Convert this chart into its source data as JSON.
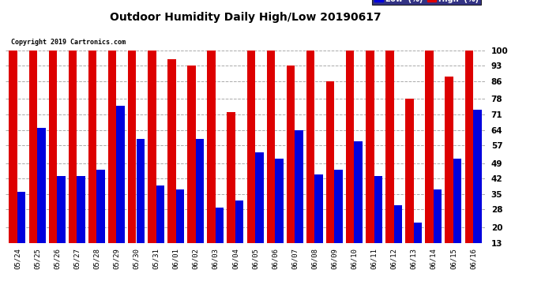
{
  "title": "Outdoor Humidity Daily High/Low 20190617",
  "copyright": "Copyright 2019 Cartronics.com",
  "legend_low": "Low  (%)",
  "legend_high": "High  (%)",
  "low_color": "#0000dd",
  "high_color": "#dd0000",
  "bg_color": "#ffffff",
  "ylim": [
    13,
    100
  ],
  "yticks": [
    13,
    20,
    28,
    35,
    42,
    49,
    57,
    64,
    71,
    78,
    86,
    93,
    100
  ],
  "dates": [
    "05/24",
    "05/25",
    "05/26",
    "05/27",
    "05/28",
    "05/29",
    "05/30",
    "05/31",
    "06/01",
    "06/02",
    "06/03",
    "06/04",
    "06/05",
    "06/06",
    "06/07",
    "06/08",
    "06/09",
    "06/10",
    "06/11",
    "06/12",
    "06/13",
    "06/14",
    "06/15",
    "06/16"
  ],
  "high_values": [
    100,
    100,
    100,
    100,
    100,
    100,
    100,
    100,
    96,
    93,
    100,
    72,
    100,
    100,
    93,
    100,
    86,
    100,
    100,
    100,
    78,
    100,
    88,
    100
  ],
  "low_values": [
    36,
    65,
    43,
    43,
    46,
    75,
    60,
    39,
    37,
    60,
    29,
    32,
    54,
    51,
    64,
    44,
    46,
    59,
    43,
    30,
    22,
    37,
    51,
    73
  ]
}
